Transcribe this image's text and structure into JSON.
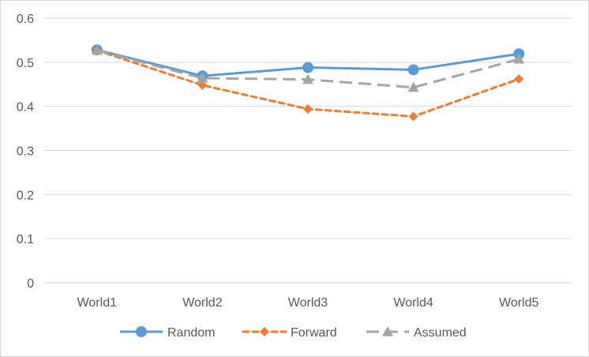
{
  "chart_data": {
    "type": "line",
    "title": "",
    "xlabel": "",
    "ylabel": "",
    "categories": [
      "World1",
      "World2",
      "World3",
      "World4",
      "World5"
    ],
    "ylim": [
      0,
      0.6
    ],
    "yticks": [
      "0",
      "0.1",
      "0.2",
      "0.3",
      "0.4",
      "0.5",
      "0.6"
    ],
    "grid": true,
    "legend_position": "bottom",
    "series": [
      {
        "name": "Random",
        "values": [
          0.528,
          0.469,
          0.488,
          0.483,
          0.519
        ],
        "color": "#5b9bd5",
        "line_style": "solid",
        "marker": "circle"
      },
      {
        "name": "Forward",
        "values": [
          0.527,
          0.448,
          0.394,
          0.377,
          0.462
        ],
        "color": "#ed7d31",
        "line_style": "dotted",
        "marker": "diamond"
      },
      {
        "name": "Assumed",
        "values": [
          0.527,
          0.464,
          0.461,
          0.443,
          0.507
        ],
        "color": "#a5a5a5",
        "line_style": "dashed",
        "marker": "triangle"
      }
    ]
  }
}
